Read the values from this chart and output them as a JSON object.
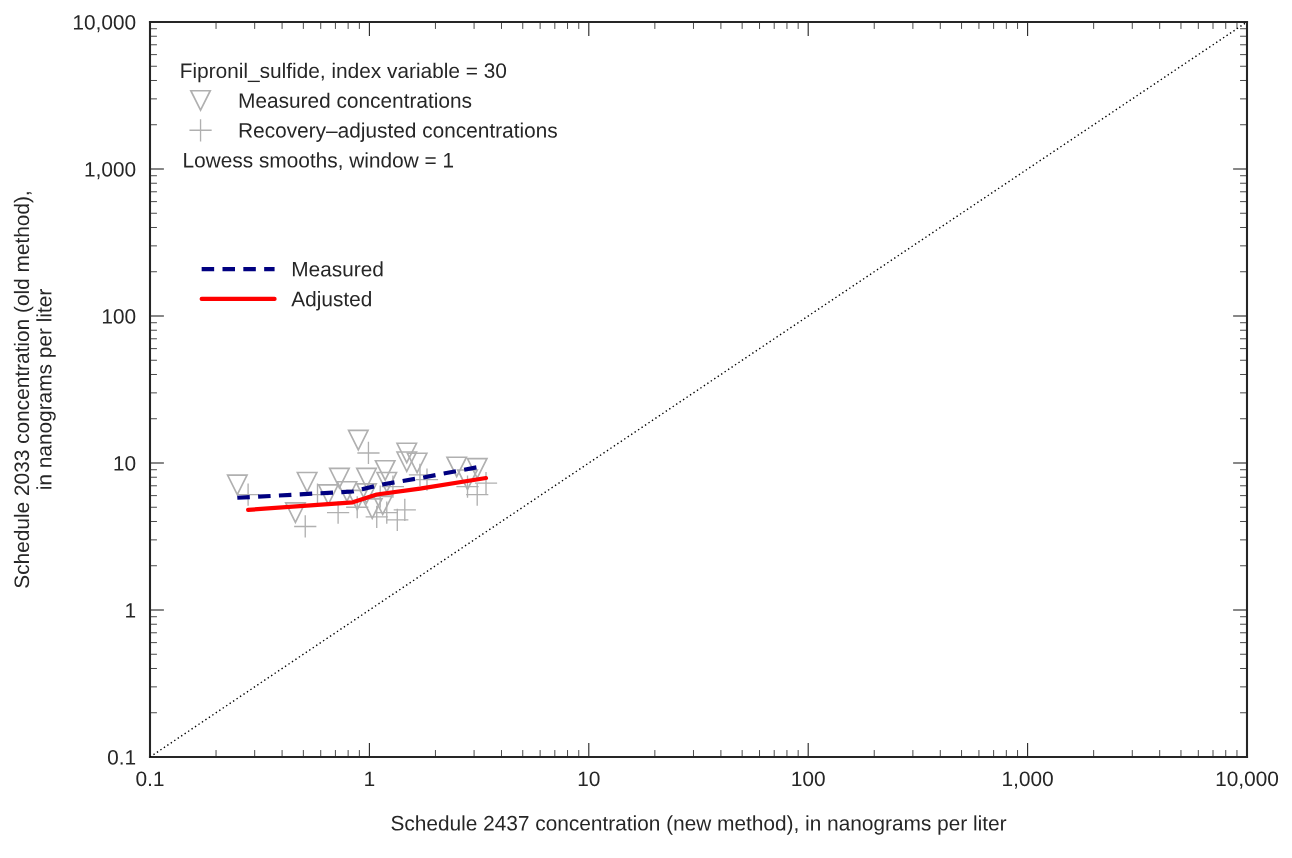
{
  "chart_data": {
    "type": "scatter",
    "xlabel": "Schedule 2437 concentration (new method), in nanograms per liter",
    "ylabel": "Schedule 2033 concentration (old method),\nin nanograms per liter",
    "legend_title": "Fipronil_sulfide, index variable = 30",
    "annotations": [
      "Lowess smooths, window = 1"
    ],
    "log": "xy",
    "grid": false,
    "legend": "top left",
    "xlim": [
      0.1,
      10000
    ],
    "ylim": [
      0.1,
      10000
    ],
    "xticks": [
      0.1,
      1,
      10,
      100,
      {
        "value": 1000,
        "label": "1,000"
      },
      {
        "value": 10000,
        "label": "10,000"
      }
    ],
    "yticks": [
      0.1,
      1,
      10,
      100,
      {
        "value": 1000,
        "label": "1,000"
      },
      {
        "value": 10000,
        "label": "10,000"
      }
    ],
    "series": [
      {
        "name": "Measured concentrations",
        "marker": "triangle",
        "color": "#b0b0b0",
        "x": [
          0.25,
          0.52,
          0.46,
          0.89,
          0.73,
          0.97,
          1.18,
          1.48,
          1.48,
          1.65,
          2.5,
          3.1,
          0.79,
          0.97,
          1.2,
          0.88,
          0.65,
          1.03,
          1.15,
          2.8
        ],
        "values": [
          7.1,
          7.4,
          4.6,
          14.3,
          7.9,
          7.9,
          8.9,
          11.7,
          10.2,
          10,
          9.4,
          9.2,
          6.4,
          6.2,
          7.4,
          5.6,
          6.1,
          4.9,
          5.2,
          7.7
        ]
      },
      {
        "name": "Recovery–adjusted concentrations",
        "marker": "cross",
        "color": "#b0b0b0",
        "x": [
          0.28,
          0.51,
          0.99,
          0.58,
          0.72,
          0.88,
          1.08,
          1.2,
          1.34,
          1.45,
          1.7,
          1.83,
          3.1,
          3.4,
          1.28,
          1.12,
          2.8
        ],
        "values": [
          6.1,
          3.7,
          11.7,
          6.1,
          4.6,
          5.0,
          4.3,
          4.6,
          4.1,
          4.8,
          8.3,
          7.7,
          6.1,
          7.3,
          6.9,
          5.9,
          6.9
        ]
      },
      {
        "name": "Measured",
        "type": "line",
        "line_style": "dashed",
        "color": "#000080",
        "x": [
          0.25,
          0.84,
          1.12,
          1.7,
          3.15
        ],
        "values": [
          5.8,
          6.4,
          7.1,
          7.9,
          9.4
        ]
      },
      {
        "name": "Adjusted",
        "type": "line",
        "line_style": "solid",
        "color": "#ff0000",
        "x": [
          0.28,
          0.84,
          1.08,
          1.7,
          3.4
        ],
        "values": [
          4.8,
          5.4,
          6.1,
          6.7,
          7.9
        ]
      },
      {
        "type": "line",
        "line_style": "dotted",
        "color": "#000000",
        "x": [
          0.1,
          10000
        ],
        "values": [
          0.1,
          10000
        ]
      }
    ]
  }
}
